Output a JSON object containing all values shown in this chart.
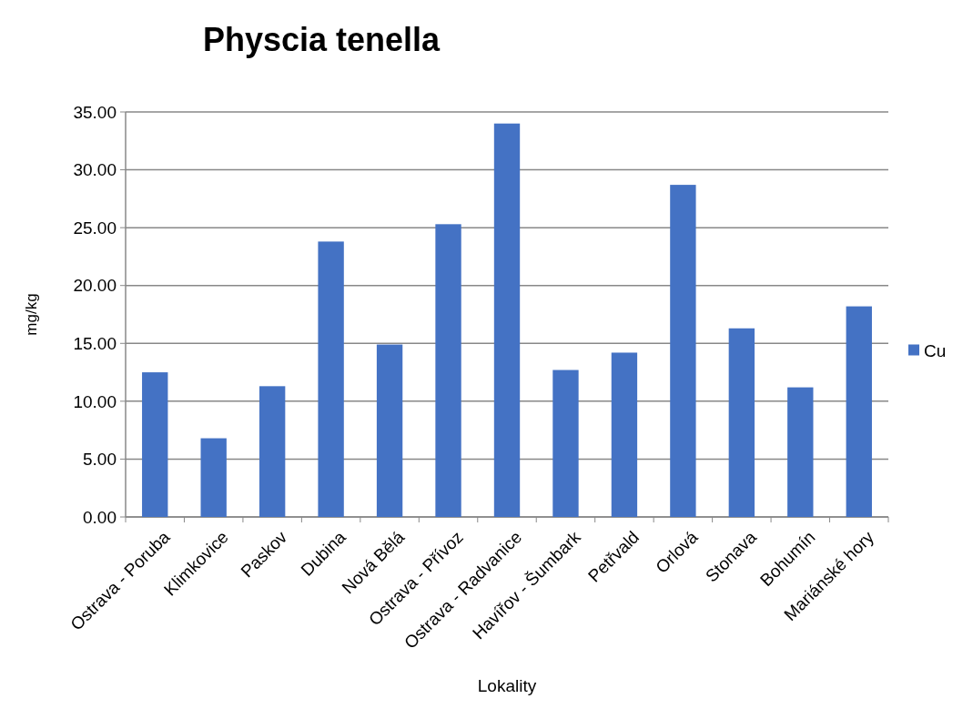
{
  "chart_data": {
    "type": "bar",
    "title": "Physcia tenella",
    "xlabel": "Lokality",
    "ylabel": "mg/kg",
    "categories": [
      "Ostrava - Poruba",
      "Klimkovice",
      "Paskov",
      "Dubina",
      "Nová Bělá",
      "Ostrava - Přívoz",
      "Ostrava - Radvanice",
      "Havířov - Šumbark",
      "Petřvald",
      "Orlová",
      "Stonava",
      "Bohumín",
      "Mariánské hory"
    ],
    "series": [
      {
        "name": "Cu",
        "color": "#4472c4",
        "values": [
          12.5,
          6.8,
          11.3,
          23.8,
          14.9,
          25.3,
          34.0,
          12.7,
          14.2,
          28.7,
          16.3,
          11.2,
          18.2
        ]
      }
    ],
    "ylim": [
      0,
      35
    ],
    "yticks": [
      {
        "value": 0,
        "label": "0.00"
      },
      {
        "value": 5,
        "label": "5.00"
      },
      {
        "value": 10,
        "label": "10.00"
      },
      {
        "value": 15,
        "label": "15.00"
      },
      {
        "value": 20,
        "label": "20.00"
      },
      {
        "value": 25,
        "label": "25.00"
      },
      {
        "value": 30,
        "label": "30.00"
      },
      {
        "value": 35,
        "label": "35.00"
      }
    ],
    "grid": "y",
    "legend": "right"
  }
}
